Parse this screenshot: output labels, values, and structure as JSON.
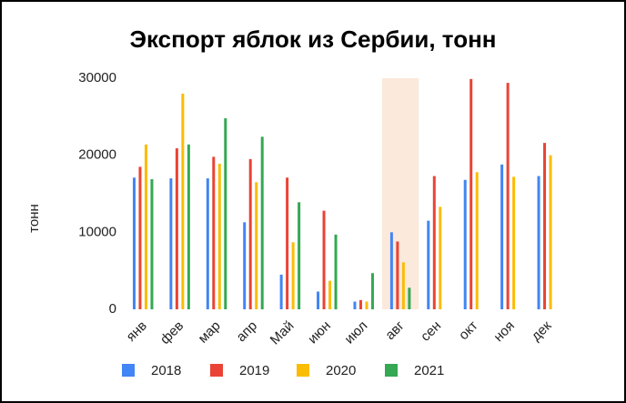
{
  "chart_data": {
    "type": "bar",
    "title": "Экспорт яблок из Сербии, тонн",
    "y_label": "тонн",
    "categories": [
      "янв",
      "фев",
      "мар",
      "апр",
      "Май",
      "июн",
      "июл",
      "авг",
      "сен",
      "окт",
      "ноя",
      "дек"
    ],
    "series": [
      {
        "name": "2018",
        "color": "#4285f4",
        "values": [
          17100,
          17000,
          17000,
          11300,
          4500,
          2300,
          1000,
          10000,
          11500,
          16800,
          18800,
          17300
        ]
      },
      {
        "name": "2019",
        "color": "#ea4335",
        "values": [
          18500,
          20900,
          19800,
          19500,
          17100,
          12800,
          1200,
          8800,
          17300,
          29900,
          29400,
          21600
        ]
      },
      {
        "name": "2020",
        "color": "#fbbc04",
        "values": [
          21400,
          28000,
          18900,
          16500,
          8700,
          3700,
          1000,
          6100,
          13300,
          17800,
          17200,
          20000
        ]
      },
      {
        "name": "2021",
        "color": "#34a853",
        "values": [
          16900,
          21400,
          24800,
          22400,
          13900,
          9700,
          4700,
          2800,
          null,
          null,
          null,
          null
        ]
      }
    ],
    "ylim": [
      0,
      30000
    ],
    "yticks": [
      0,
      10000,
      20000,
      30000
    ],
    "highlight_category": 7,
    "highlight_color": "#fbe9dc",
    "legend": "bottom"
  }
}
